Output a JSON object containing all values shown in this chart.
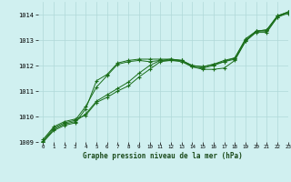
{
  "title": "Graphe pression niveau de la mer (hPa)",
  "bg_color": "#d0f0f0",
  "grid_color": "#b0d8d8",
  "line_color": "#1a6e1a",
  "marker_color": "#1a6e1a",
  "xlim": [
    -0.5,
    23
  ],
  "ylim": [
    1009,
    1014.5
  ],
  "yticks": [
    1009,
    1010,
    1011,
    1012,
    1013,
    1014
  ],
  "xticks": [
    0,
    1,
    2,
    3,
    4,
    5,
    6,
    7,
    8,
    9,
    10,
    11,
    12,
    13,
    14,
    15,
    16,
    17,
    18,
    19,
    20,
    21,
    22,
    23
  ],
  "series": [
    [
      1009.1,
      1009.6,
      1009.8,
      1009.9,
      1010.05,
      1010.55,
      1010.75,
      1011.0,
      1011.2,
      1011.55,
      1011.85,
      1012.15,
      1012.2,
      1012.2,
      1011.95,
      1011.85,
      1011.85,
      1011.9,
      1012.2,
      1012.95,
      1013.3,
      1013.3,
      1013.9,
      1014.1
    ],
    [
      1009.05,
      1009.55,
      1009.75,
      1009.85,
      1010.4,
      1011.15,
      1011.6,
      1012.05,
      1012.15,
      1012.2,
      1012.15,
      1012.2,
      1012.2,
      1012.15,
      1011.95,
      1011.9,
      1012.0,
      1012.15,
      1012.25,
      1012.95,
      1013.35,
      1013.35,
      1013.9,
      1014.05
    ],
    [
      1009.0,
      1009.5,
      1009.7,
      1009.8,
      1010.1,
      1010.6,
      1010.85,
      1011.1,
      1011.35,
      1011.7,
      1012.0,
      1012.2,
      1012.25,
      1012.2,
      1012.0,
      1011.95,
      1012.05,
      1012.15,
      1012.3,
      1013.0,
      1013.35,
      1013.4,
      1013.95,
      1014.1
    ],
    [
      1009.0,
      1009.45,
      1009.65,
      1009.75,
      1010.3,
      1011.4,
      1011.65,
      1012.1,
      1012.2,
      1012.25,
      1012.25,
      1012.25,
      1012.25,
      1012.2,
      1012.0,
      1011.95,
      1012.05,
      1012.2,
      1012.3,
      1013.05,
      1013.35,
      1013.4,
      1013.95,
      1014.1
    ]
  ]
}
